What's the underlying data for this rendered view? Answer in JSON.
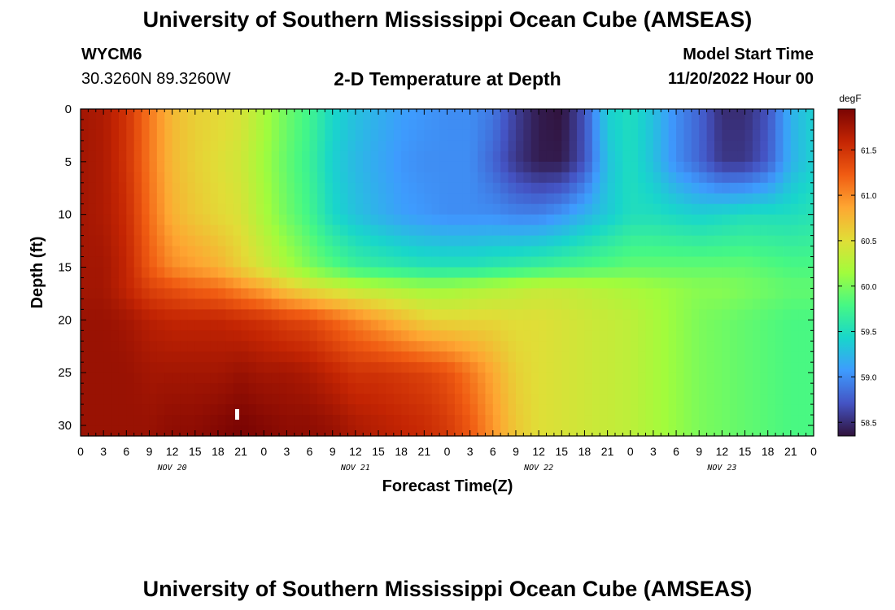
{
  "header": {
    "title": "University of Southern Mississippi Ocean Cube (AMSEAS)",
    "station_id": "WYCM6",
    "station_coords": "30.3260N  89.3260W",
    "plot_title": "2-D Temperature at Depth",
    "model_label": "Model Start Time",
    "model_time": "11/20/2022 Hour 00"
  },
  "footer": {
    "title": "University of Southern Mississippi Ocean Cube (AMSEAS)"
  },
  "chart_data": {
    "type": "heatmap",
    "xlabel": "Forecast Time(Z)",
    "ylabel": "Depth (ft)",
    "x_range_hours": [
      0,
      96
    ],
    "ylim": [
      0,
      31
    ],
    "y_inverted": true,
    "x_tick_labels": [
      "0",
      "3",
      "6",
      "9",
      "12",
      "15",
      "18",
      "21",
      "0",
      "3",
      "6",
      "9",
      "12",
      "15",
      "18",
      "21",
      "0",
      "3",
      "6",
      "9",
      "12",
      "15",
      "18",
      "21",
      "0",
      "3",
      "6",
      "9",
      "12",
      "15",
      "18",
      "21",
      "0"
    ],
    "y_ticks": [
      0,
      5,
      10,
      15,
      20,
      25,
      30
    ],
    "y_tick_labels": [
      "0",
      "5",
      "10",
      "15",
      "20",
      "25",
      "30"
    ],
    "date_labels": [
      {
        "label": "NOV 20",
        "hour": 12
      },
      {
        "label": "NOV 21",
        "hour": 36
      },
      {
        "label": "NOV 22",
        "hour": 60
      },
      {
        "label": "NOV 23",
        "hour": 84
      }
    ],
    "colorbar": {
      "unit": "degF",
      "min": 58.35,
      "max": 61.95,
      "ticks": [
        58.5,
        59.0,
        59.5,
        60.0,
        60.5,
        61.0,
        61.5
      ],
      "tick_labels": [
        "58.5",
        "59.0",
        "59.5",
        "60.0",
        "60.5",
        "61.0",
        "61.5"
      ],
      "colors": [
        "#30123b",
        "#4454c4",
        "#3e9bfe",
        "#18d6cb",
        "#46f884",
        "#a2fc3c",
        "#e1dd37",
        "#fea632",
        "#f05b12",
        "#c42503",
        "#7a0403"
      ]
    },
    "temperature_degF": {
      "hours": [
        0,
        3,
        6,
        9,
        12,
        15,
        18,
        21,
        24,
        27,
        30,
        33,
        36,
        39,
        42,
        45,
        48,
        51,
        54,
        57,
        60,
        63,
        66,
        69,
        72,
        75,
        78,
        81,
        84,
        87,
        90,
        93,
        96
      ],
      "depths_ft": [
        0,
        5,
        10,
        15,
        17,
        20,
        25,
        30
      ],
      "rows": [
        [
          61.75,
          61.7,
          61.5,
          61.1,
          60.75,
          60.6,
          60.55,
          60.45,
          60.2,
          59.95,
          59.75,
          59.45,
          59.3,
          59.2,
          59.1,
          59.05,
          59.0,
          59.0,
          58.9,
          58.6,
          58.4,
          58.35,
          58.7,
          59.4,
          59.5,
          59.3,
          59.0,
          58.8,
          58.5,
          58.5,
          58.7,
          59.2,
          59.4
        ],
        [
          61.75,
          61.7,
          61.5,
          61.1,
          60.75,
          60.6,
          60.5,
          60.4,
          60.15,
          59.9,
          59.7,
          59.4,
          59.25,
          59.15,
          59.05,
          59.0,
          59.0,
          59.0,
          58.8,
          58.55,
          58.4,
          58.4,
          58.7,
          59.3,
          59.5,
          59.3,
          59.0,
          58.8,
          58.55,
          58.55,
          58.75,
          59.2,
          59.4
        ],
        [
          61.75,
          61.7,
          61.55,
          61.15,
          60.8,
          60.65,
          60.55,
          60.45,
          60.2,
          59.95,
          59.75,
          59.45,
          59.3,
          59.2,
          59.1,
          59.05,
          59.0,
          59.0,
          59.0,
          58.95,
          58.95,
          59.05,
          59.2,
          59.35,
          59.5,
          59.5,
          59.45,
          59.4,
          59.45,
          59.5,
          59.5,
          59.5,
          59.55
        ],
        [
          61.75,
          61.75,
          61.6,
          61.25,
          61.0,
          60.9,
          60.8,
          60.6,
          60.4,
          60.2,
          60.0,
          59.85,
          59.7,
          59.65,
          59.6,
          59.55,
          59.55,
          59.55,
          59.6,
          59.65,
          59.7,
          59.75,
          59.8,
          59.85,
          59.9,
          59.9,
          59.9,
          59.9,
          59.9,
          59.9,
          59.85,
          59.8,
          59.8
        ],
        [
          61.75,
          61.75,
          61.6,
          61.4,
          61.3,
          61.2,
          61.15,
          61.0,
          60.85,
          60.65,
          60.5,
          60.4,
          60.3,
          60.25,
          60.2,
          60.15,
          60.15,
          60.2,
          60.25,
          60.3,
          60.35,
          60.35,
          60.3,
          60.25,
          60.2,
          60.15,
          60.1,
          60.05,
          60.05,
          60.0,
          59.95,
          59.9,
          59.9
        ],
        [
          61.8,
          61.8,
          61.75,
          61.65,
          61.6,
          61.6,
          61.6,
          61.55,
          61.5,
          61.4,
          61.35,
          61.2,
          61.05,
          60.9,
          60.75,
          60.6,
          60.55,
          60.55,
          60.55,
          60.5,
          60.5,
          60.45,
          60.4,
          60.35,
          60.3,
          60.2,
          60.1,
          60.0,
          59.95,
          59.9,
          59.85,
          59.8,
          59.8
        ],
        [
          61.8,
          61.8,
          61.8,
          61.75,
          61.75,
          61.75,
          61.75,
          61.8,
          61.75,
          61.75,
          61.7,
          61.6,
          61.5,
          61.5,
          61.45,
          61.4,
          61.3,
          61.1,
          60.85,
          60.6,
          60.5,
          60.45,
          60.4,
          60.35,
          60.3,
          60.2,
          60.1,
          60.0,
          59.95,
          59.9,
          59.85,
          59.8,
          59.8
        ],
        [
          61.8,
          61.8,
          61.8,
          61.8,
          61.85,
          61.85,
          61.9,
          61.95,
          61.9,
          61.85,
          61.85,
          61.8,
          61.7,
          61.65,
          61.6,
          61.55,
          61.45,
          61.25,
          60.95,
          60.65,
          60.5,
          60.45,
          60.4,
          60.35,
          60.3,
          60.2,
          60.1,
          60.0,
          59.95,
          59.9,
          59.85,
          59.8,
          59.8
        ]
      ]
    }
  }
}
